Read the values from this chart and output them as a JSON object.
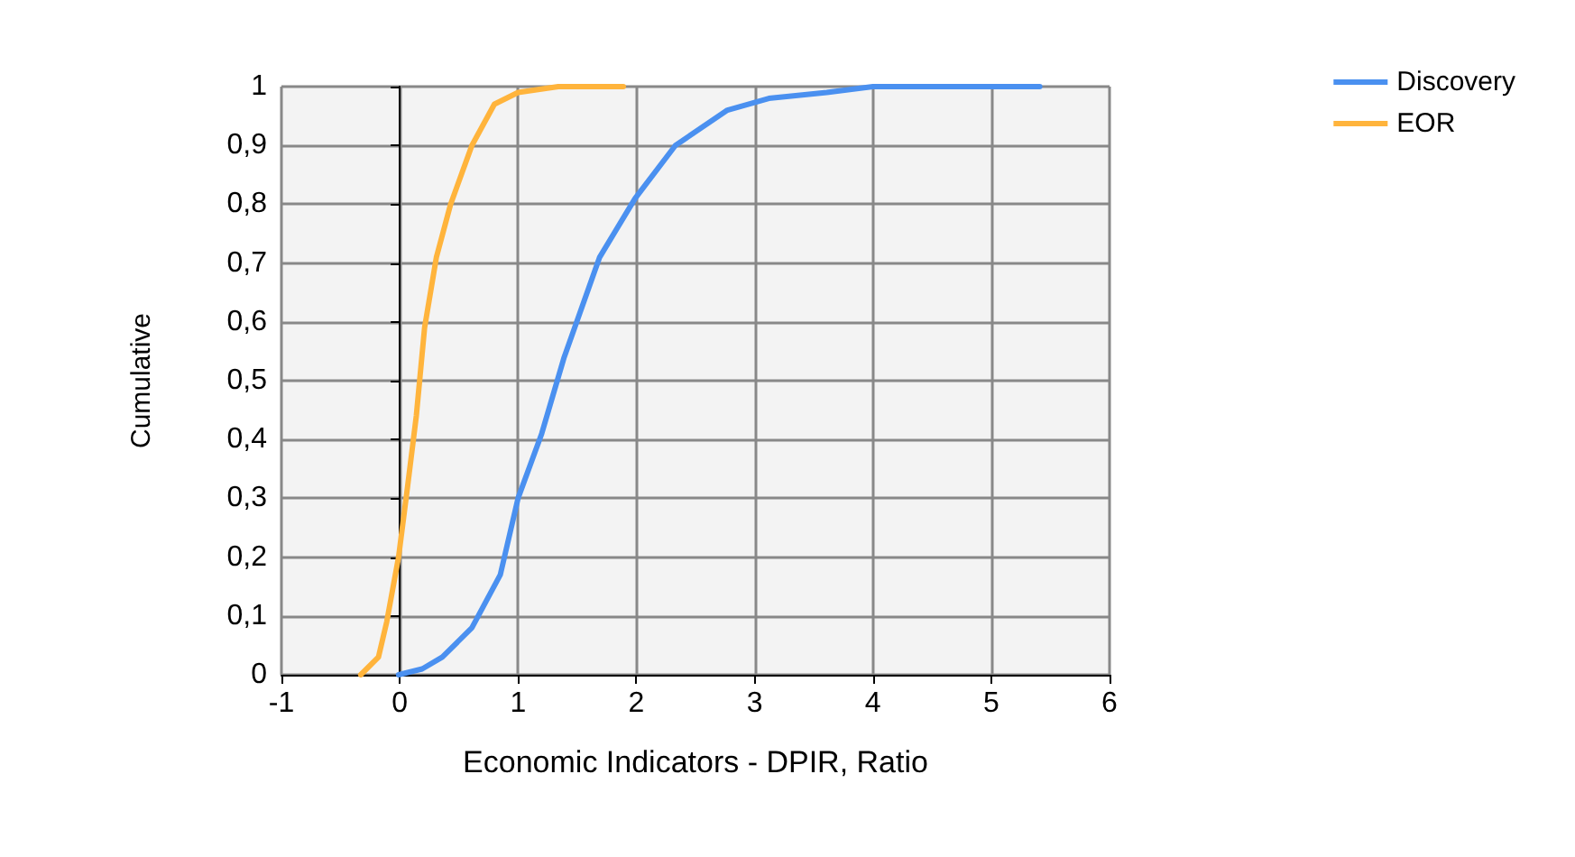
{
  "chart_data": {
    "type": "line",
    "xlabel": "Economic Indicators - DPIR, Ratio",
    "ylabel": "Cumulative",
    "series": [
      {
        "name": "Discovery",
        "color": "#4a90f0",
        "x": [
          -0.01,
          0.19,
          0.36,
          0.61,
          0.85,
          1.0,
          1.2,
          1.39,
          1.69,
          1.99,
          2.33,
          2.77,
          3.12,
          3.61,
          4.0,
          5.41
        ],
        "values": [
          0,
          0.01,
          0.03,
          0.08,
          0.17,
          0.3,
          0.41,
          0.54,
          0.71,
          0.81,
          0.9,
          0.96,
          0.98,
          0.99,
          1,
          1
        ]
      },
      {
        "name": "EOR",
        "color": "#ffb43c",
        "x": [
          -0.33,
          -0.18,
          -0.11,
          -0.01,
          0.06,
          0.14,
          0.21,
          0.31,
          0.43,
          0.61,
          0.8,
          1.0,
          1.34,
          1.89
        ],
        "values": [
          0,
          0.03,
          0.09,
          0.2,
          0.31,
          0.44,
          0.59,
          0.71,
          0.8,
          0.9,
          0.97,
          0.99,
          1,
          1
        ]
      }
    ],
    "xlim": [
      -1,
      6
    ],
    "xticks": [
      -1,
      0,
      1,
      2,
      3,
      4,
      5,
      6
    ],
    "ylim": [
      0,
      1
    ],
    "yticks": [
      0,
      {
        "value": 0.1,
        "label": "0,1"
      },
      {
        "value": 0.2,
        "label": "0,2"
      },
      {
        "value": 0.3,
        "label": "0,3"
      },
      {
        "value": 0.4,
        "label": "0,4"
      },
      {
        "value": 0.5,
        "label": "0,5"
      },
      {
        "value": 0.6,
        "label": "0,6"
      },
      {
        "value": 0.7,
        "label": "0,7"
      },
      {
        "value": 0.8,
        "label": "0,8"
      },
      {
        "value": 0.9,
        "label": "0,9"
      },
      1
    ],
    "grid": true,
    "legend": "top right",
    "marker": "none",
    "line_style": "solid"
  }
}
